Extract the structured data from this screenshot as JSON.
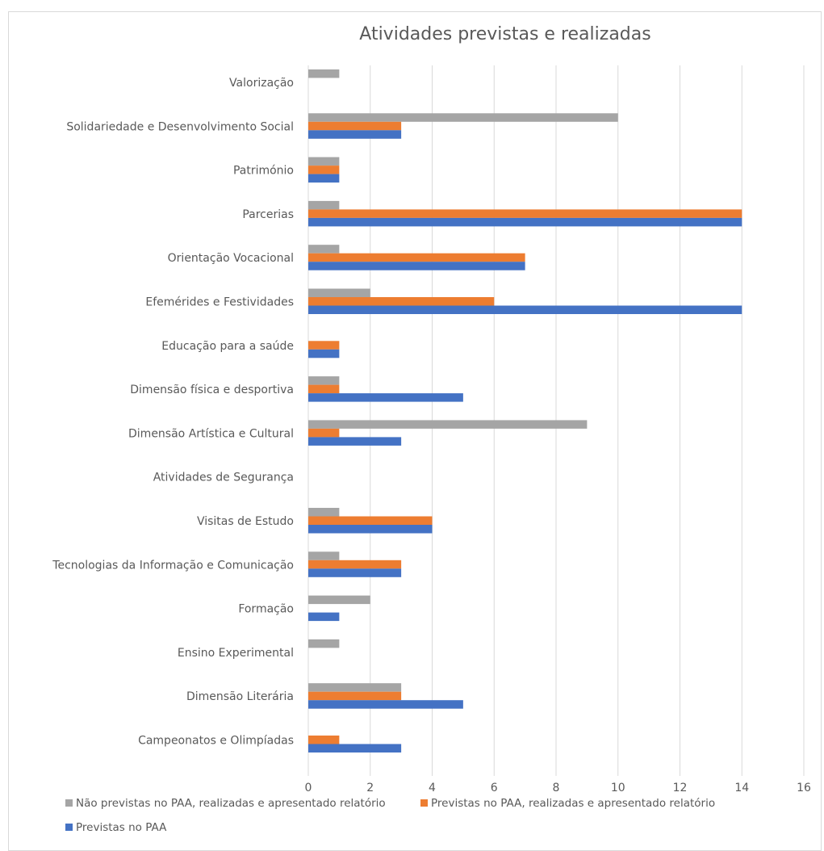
{
  "header": {
    "partial_text": ""
  },
  "chart_data": {
    "type": "bar",
    "orientation": "horizontal",
    "title": "Atividades previstas e realizadas",
    "xlabel": "",
    "ylabel": "",
    "xlim": [
      0,
      16
    ],
    "x_ticks": [
      0,
      2,
      4,
      6,
      8,
      10,
      12,
      14,
      16
    ],
    "grid": true,
    "legend_position": "bottom",
    "categories": [
      "Valorização",
      "Solidariedade e Desenvolvimento Social",
      "Património",
      "Parcerias",
      "Orientação Vocacional",
      "Efemérides e Festividades",
      "Educação para a saúde",
      "Dimensão física e desportiva",
      "Dimensão Artística e Cultural",
      "Atividades de Segurança",
      "Visitas de Estudo",
      "Tecnologias da Informação e Comunicação",
      "Formação",
      "Ensino Experimental",
      "Dimensão Literária",
      "Campeonatos e Olimpíadas"
    ],
    "series": [
      {
        "name": "Não previstas no PAA, realizadas e apresentado relatório",
        "color": "#a5a5a5",
        "values": [
          1,
          10,
          1,
          1,
          1,
          2,
          0,
          1,
          9,
          0,
          1,
          1,
          2,
          1,
          3,
          0
        ]
      },
      {
        "name": "Previstas no PAA, realizadas e apresentado relatório",
        "color": "#ed7d31",
        "values": [
          0,
          3,
          1,
          14,
          7,
          6,
          1,
          1,
          1,
          0,
          4,
          3,
          0,
          0,
          3,
          1
        ]
      },
      {
        "name": "Previstas no PAA",
        "color": "#4472c4",
        "values": [
          0,
          3,
          1,
          14,
          7,
          14,
          1,
          5,
          3,
          0,
          4,
          3,
          1,
          0,
          5,
          3
        ]
      }
    ]
  }
}
